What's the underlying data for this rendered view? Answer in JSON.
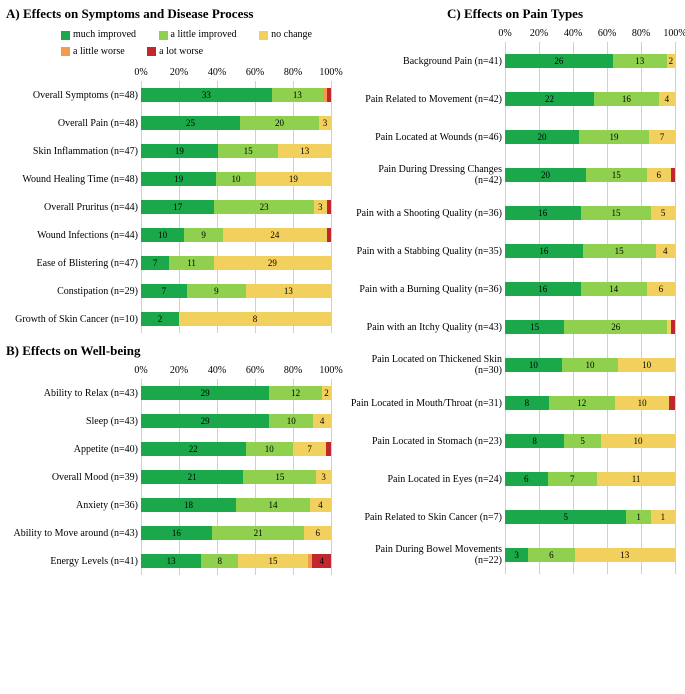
{
  "colors": {
    "much_improved": "#1ba84a",
    "little_improved": "#8fd14f",
    "no_change": "#f2d05e",
    "little_worse": "#f29b4c",
    "lot_worse": "#c1272d",
    "grid": "#d0d0d0",
    "bg": "#ffffff"
  },
  "legend_order": [
    "much_improved",
    "little_improved",
    "no_change",
    "little_worse",
    "lot_worse"
  ],
  "legend_labels": {
    "much_improved": "much improved",
    "little_improved": "a little improved",
    "no_change": "no change",
    "little_worse": "a little worse",
    "lot_worse": "a lot worse"
  },
  "axis_ticks": [
    0,
    20,
    40,
    60,
    80,
    100
  ],
  "panels": {
    "A": {
      "title": "A) Effects on Symptoms and Disease Process",
      "show_legend": true,
      "rows": [
        {
          "label": "Overall Symptoms (n=48)",
          "n": 48,
          "v": {
            "much_improved": 33,
            "little_improved": 13,
            "no_change": 0,
            "little_worse": 1,
            "lot_worse": 1
          }
        },
        {
          "label": "Overall Pain (n=48)",
          "n": 48,
          "v": {
            "much_improved": 25,
            "little_improved": 20,
            "no_change": 3,
            "little_worse": 0,
            "lot_worse": 0
          }
        },
        {
          "label": "Skin Inflammation (n=47)",
          "n": 47,
          "v": {
            "much_improved": 19,
            "little_improved": 15,
            "no_change": 13,
            "little_worse": 0,
            "lot_worse": 0
          }
        },
        {
          "label": "Wound Healing Time (n=48)",
          "n": 48,
          "v": {
            "much_improved": 19,
            "little_improved": 10,
            "no_change": 19,
            "little_worse": 0,
            "lot_worse": 0
          }
        },
        {
          "label": "Overall Pruritus (n=44)",
          "n": 44,
          "v": {
            "much_improved": 17,
            "little_improved": 23,
            "no_change": 3,
            "little_worse": 0,
            "lot_worse": 1
          }
        },
        {
          "label": "Wound Infections (n=44)",
          "n": 44,
          "v": {
            "much_improved": 10,
            "little_improved": 9,
            "no_change": 24,
            "little_worse": 0,
            "lot_worse": 1
          }
        },
        {
          "label": "Ease of Blistering (n=47)",
          "n": 47,
          "v": {
            "much_improved": 7,
            "little_improved": 11,
            "no_change": 29,
            "little_worse": 0,
            "lot_worse": 0
          }
        },
        {
          "label": "Constipation (n=29)",
          "n": 29,
          "v": {
            "much_improved": 7,
            "little_improved": 9,
            "no_change": 13,
            "little_worse": 0,
            "lot_worse": 0
          }
        },
        {
          "label": "Growth of Skin Cancer (n=10)",
          "n": 10,
          "v": {
            "much_improved": 2,
            "little_improved": 0,
            "no_change": 8,
            "little_worse": 0,
            "lot_worse": 0
          }
        }
      ]
    },
    "B": {
      "title": "B) Effects on Well-being",
      "show_legend": false,
      "rows": [
        {
          "label": "Ability to Relax (n=43)",
          "n": 43,
          "v": {
            "much_improved": 29,
            "little_improved": 12,
            "no_change": 2,
            "little_worse": 0,
            "lot_worse": 0
          }
        },
        {
          "label": "Sleep (n=43)",
          "n": 43,
          "v": {
            "much_improved": 29,
            "little_improved": 10,
            "no_change": 4,
            "little_worse": 0,
            "lot_worse": 0
          }
        },
        {
          "label": "Appetite (n=40)",
          "n": 40,
          "v": {
            "much_improved": 22,
            "little_improved": 10,
            "no_change": 7,
            "little_worse": 0,
            "lot_worse": 1
          }
        },
        {
          "label": "Overall Mood (n=39)",
          "n": 39,
          "v": {
            "much_improved": 21,
            "little_improved": 15,
            "no_change": 3,
            "little_worse": 0,
            "lot_worse": 0
          }
        },
        {
          "label": "Anxiety (n=36)",
          "n": 36,
          "v": {
            "much_improved": 18,
            "little_improved": 14,
            "no_change": 4,
            "little_worse": 0,
            "lot_worse": 0
          }
        },
        {
          "label": "Ability to Move around (n=43)",
          "n": 43,
          "v": {
            "much_improved": 16,
            "little_improved": 21,
            "no_change": 6,
            "little_worse": 0,
            "lot_worse": 0
          }
        },
        {
          "label": "Energy Levels (n=41)",
          "n": 41,
          "v": {
            "much_improved": 13,
            "little_improved": 8,
            "no_change": 15,
            "little_worse": 1,
            "lot_worse": 4
          }
        }
      ]
    },
    "C": {
      "title": "C) Effects on Pain Types",
      "show_legend": false,
      "rows": [
        {
          "label": "Background Pain (n=41)",
          "n": 41,
          "v": {
            "much_improved": 26,
            "little_improved": 13,
            "no_change": 2,
            "little_worse": 0,
            "lot_worse": 0
          }
        },
        {
          "label": "Pain Related to Movement (n=42)",
          "n": 42,
          "v": {
            "much_improved": 22,
            "little_improved": 16,
            "no_change": 4,
            "little_worse": 0,
            "lot_worse": 0
          }
        },
        {
          "label": "Pain Located at Wounds (n=46)",
          "n": 46,
          "v": {
            "much_improved": 20,
            "little_improved": 19,
            "no_change": 7,
            "little_worse": 0,
            "lot_worse": 0
          }
        },
        {
          "label": "Pain During Dressing Changes (n=42)",
          "n": 42,
          "v": {
            "much_improved": 20,
            "little_improved": 15,
            "no_change": 6,
            "little_worse": 0,
            "lot_worse": 1
          }
        },
        {
          "label": "Pain with a Shooting Quality (n=36)",
          "n": 36,
          "v": {
            "much_improved": 16,
            "little_improved": 15,
            "no_change": 5,
            "little_worse": 0,
            "lot_worse": 0
          }
        },
        {
          "label": "Pain with a Stabbing Quality (n=35)",
          "n": 35,
          "v": {
            "much_improved": 16,
            "little_improved": 15,
            "no_change": 4,
            "little_worse": 0,
            "lot_worse": 0
          }
        },
        {
          "label": "Pain with a Burning Quality (n=36)",
          "n": 36,
          "v": {
            "much_improved": 16,
            "little_improved": 14,
            "no_change": 6,
            "little_worse": 0,
            "lot_worse": 0
          }
        },
        {
          "label": "Pain with an Itchy Quality (n=43)",
          "n": 43,
          "v": {
            "much_improved": 15,
            "little_improved": 26,
            "no_change": 1,
            "little_worse": 0,
            "lot_worse": 1
          }
        },
        {
          "label": "Pain Located on Thickened Skin (n=30)",
          "n": 30,
          "v": {
            "much_improved": 10,
            "little_improved": 10,
            "no_change": 10,
            "little_worse": 0,
            "lot_worse": 0
          }
        },
        {
          "label": "Pain Located in Mouth/Throat (n=31)",
          "n": 31,
          "v": {
            "much_improved": 8,
            "little_improved": 12,
            "no_change": 10,
            "little_worse": 0,
            "lot_worse": 1
          }
        },
        {
          "label": "Pain Located in Stomach (n=23)",
          "n": 23,
          "v": {
            "much_improved": 8,
            "little_improved": 5,
            "no_change": 10,
            "little_worse": 0,
            "lot_worse": 0
          }
        },
        {
          "label": "Pain Located in Eyes (n=24)",
          "n": 24,
          "v": {
            "much_improved": 6,
            "little_improved": 7,
            "no_change": 11,
            "little_worse": 0,
            "lot_worse": 0
          }
        },
        {
          "label": "Pain Related to Skin Cancer (n=7)",
          "n": 7,
          "v": {
            "much_improved": 5,
            "little_improved": 1,
            "no_change": 1,
            "little_worse": 0,
            "lot_worse": 0
          }
        },
        {
          "label": "Pain During Bowel Movements (n=22)",
          "n": 22,
          "v": {
            "much_improved": 3,
            "little_improved": 6,
            "no_change": 13,
            "little_worse": 0,
            "lot_worse": 0
          }
        }
      ]
    }
  }
}
